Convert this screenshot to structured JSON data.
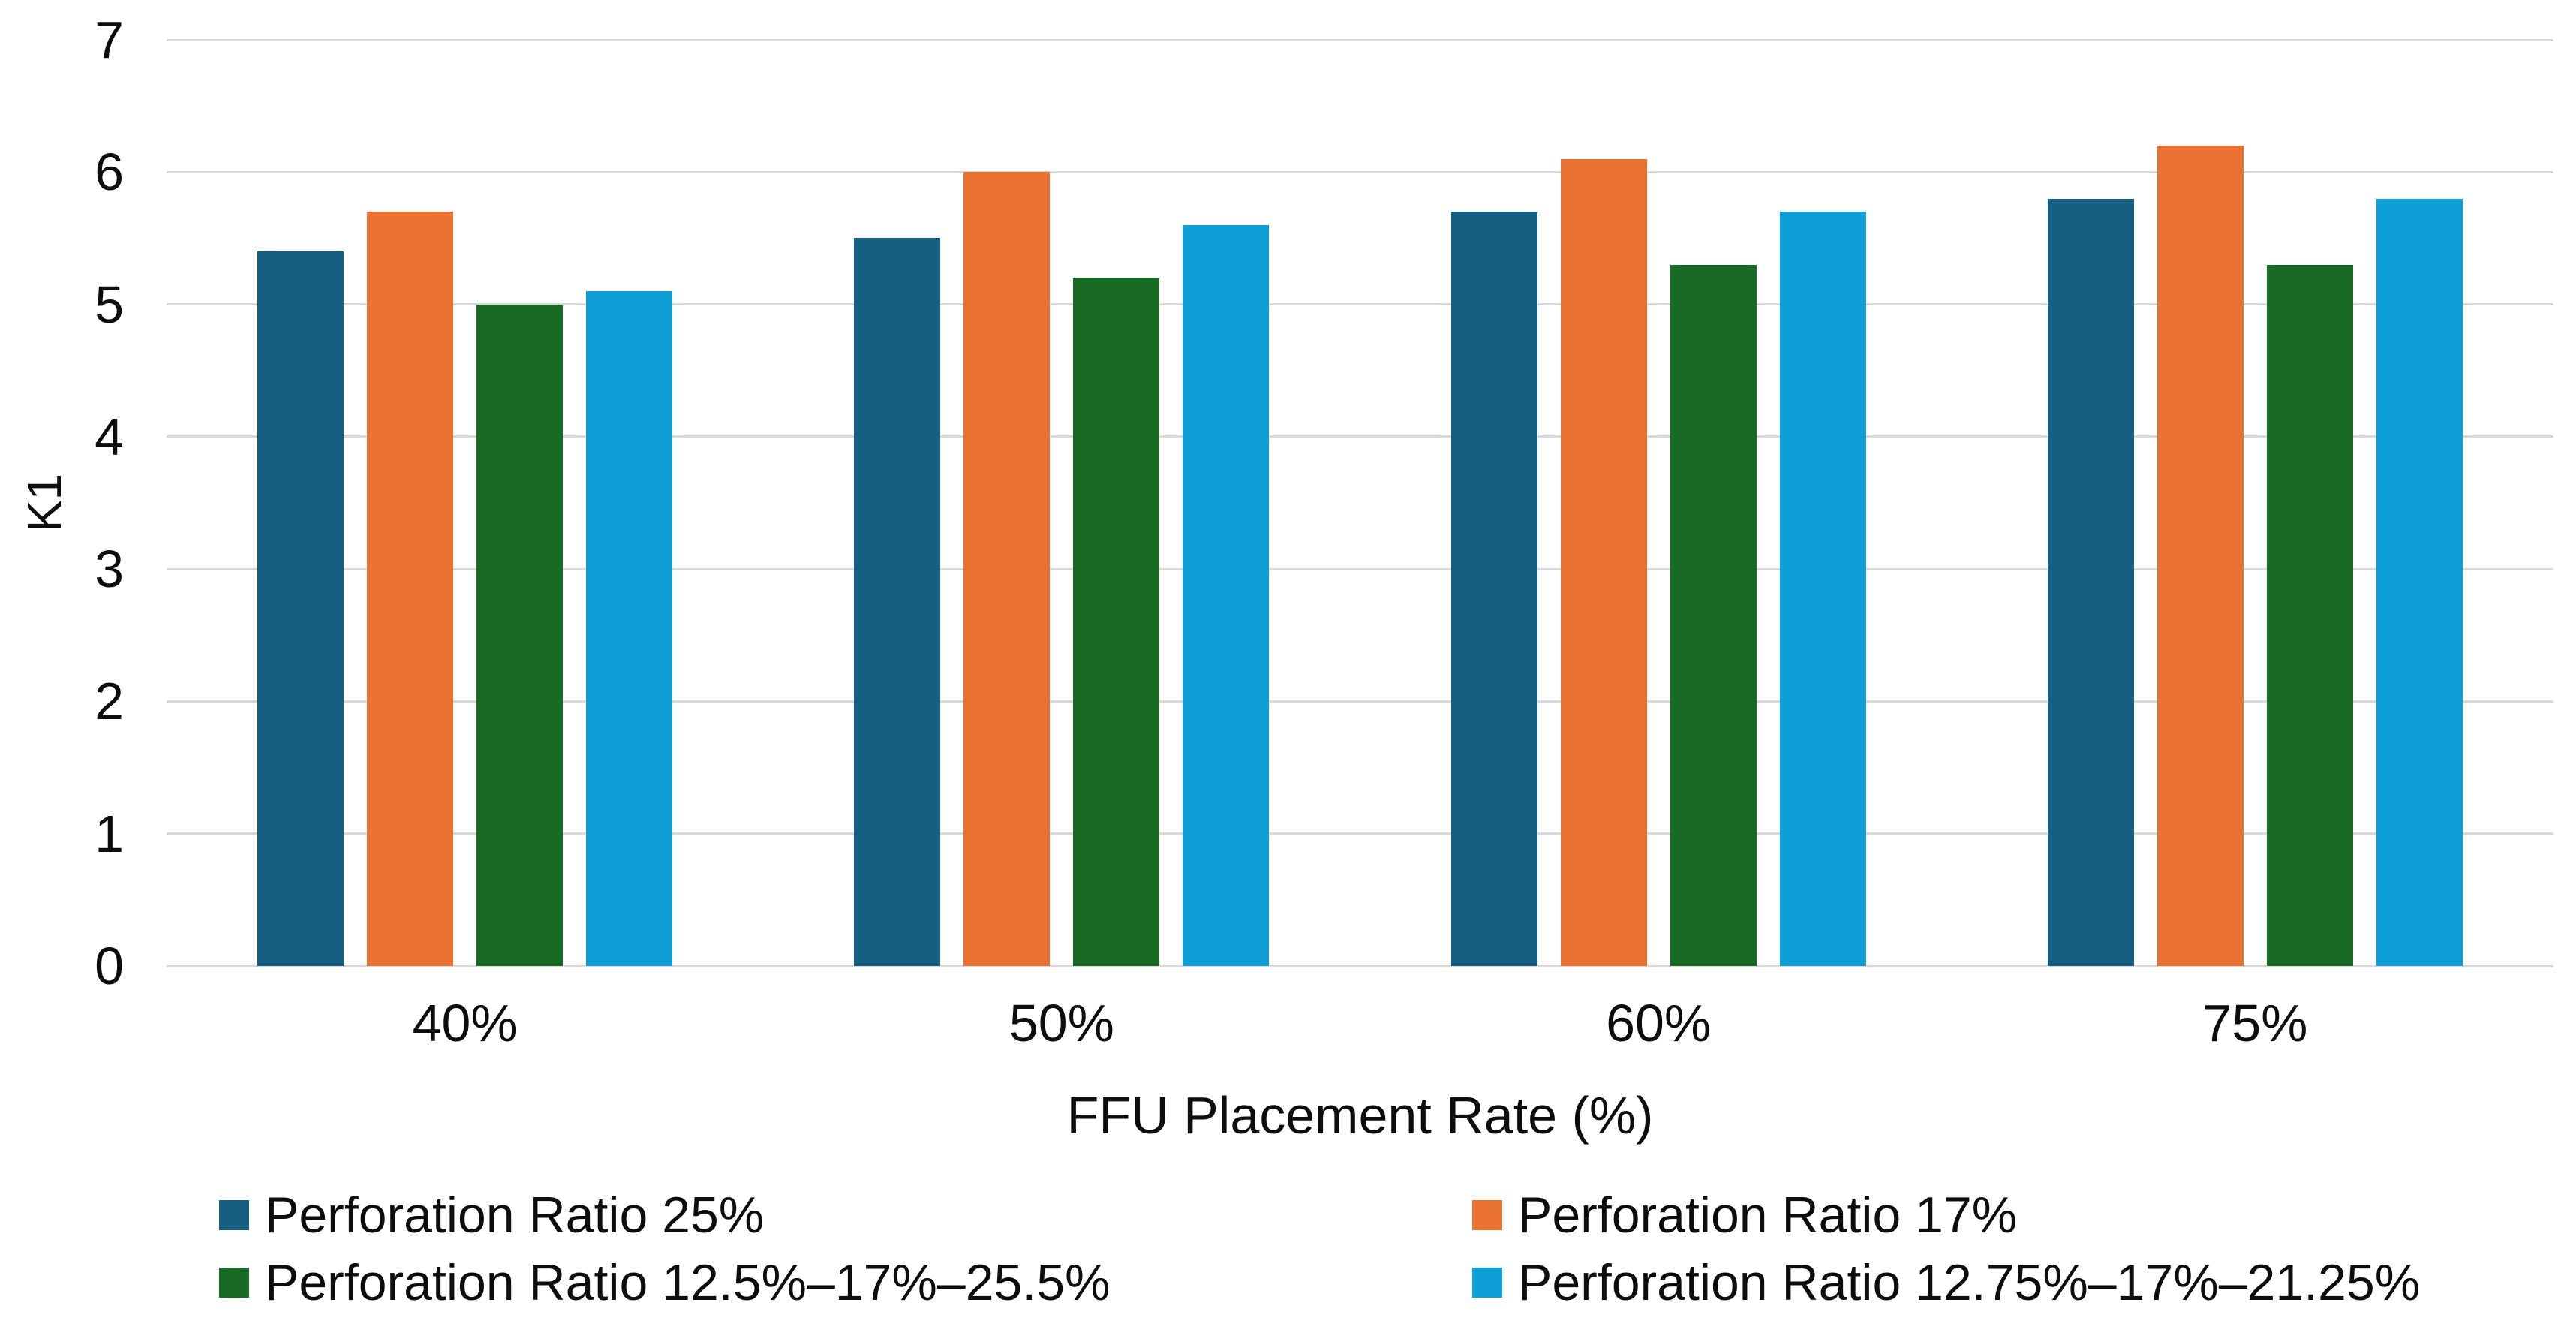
{
  "chart_data": {
    "type": "bar",
    "title": "",
    "xlabel": "FFU Placement Rate (%)",
    "ylabel": "K1",
    "categories": [
      "40%",
      "50%",
      "60%",
      "75%"
    ],
    "series": [
      {
        "name": "Perforation Ratio 25%",
        "color": "#156082",
        "values": [
          5.4,
          5.5,
          5.7,
          5.8
        ]
      },
      {
        "name": "Perforation Ratio 17%",
        "color": "#E97132",
        "values": [
          5.7,
          6.0,
          6.1,
          6.2
        ]
      },
      {
        "name": "Perforation Ratio 12.5%–17%–25.5%",
        "color": "#196B24",
        "values": [
          5.0,
          5.2,
          5.3,
          5.3
        ]
      },
      {
        "name": "Perforation Ratio 12.75%–17%–21.25%",
        "color": "#0F9ED5",
        "values": [
          5.1,
          5.6,
          5.7,
          5.8
        ]
      }
    ],
    "ylim": [
      0,
      7
    ],
    "yticks": [
      0,
      1,
      2,
      3,
      4,
      5,
      6,
      7
    ],
    "grid": true,
    "gridline_color": "#D9D9D9",
    "text_color": "#0d0d0d",
    "background": "#FFFFFF",
    "legend_position": "bottom"
  }
}
